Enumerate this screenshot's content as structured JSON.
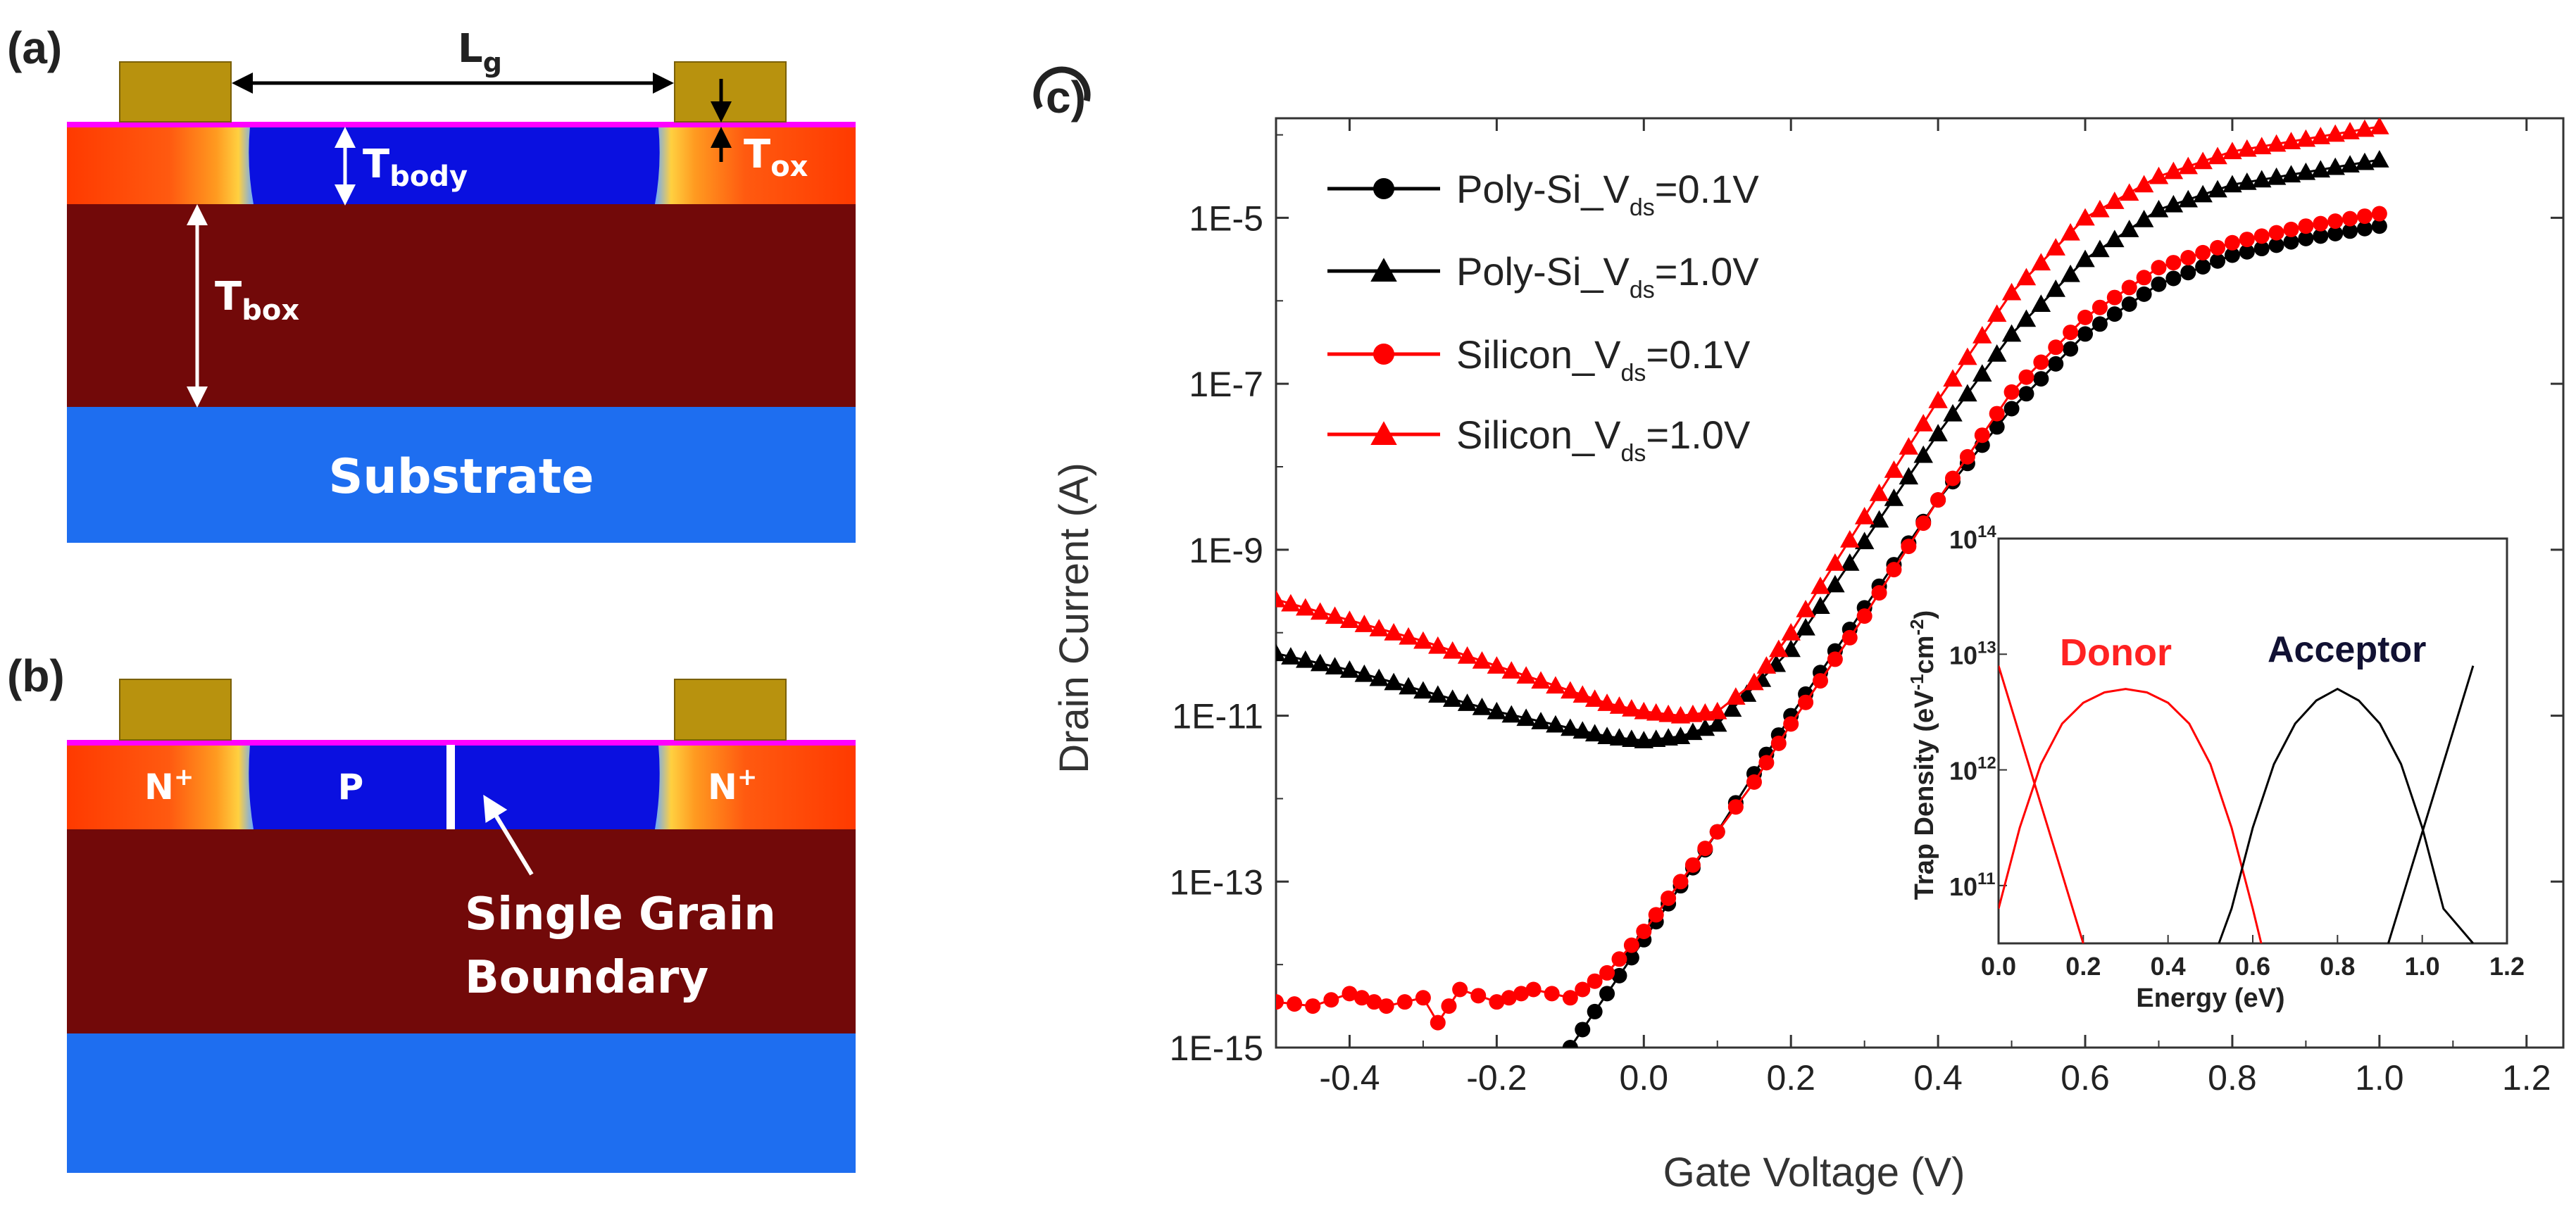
{
  "panels": {
    "a": {
      "label": "(a)",
      "lg": "L",
      "lg_sub": "g",
      "tbody": "T",
      "tbody_sub": "body",
      "tox": "T",
      "tox_sub": "ox",
      "tbox": "T",
      "tbox_sub": "box",
      "substrate": "Substrate"
    },
    "b": {
      "label": "(b)",
      "n_left": "N",
      "n_right": "N",
      "n_sup": "+",
      "p": "P",
      "boundary_line1": "Single Grain",
      "boundary_line2": "Boundary"
    },
    "c": {
      "label": "c)"
    }
  },
  "colors": {
    "gate": "#b8920e",
    "oxide": "#ff00ff",
    "body": "#0a10e0",
    "box": "#720909",
    "substrate": "#1e6ef0",
    "source_drain": "#ff3300",
    "poly": "#000000",
    "silicon": "#ff0000"
  },
  "chart_data": [
    {
      "type": "scatter",
      "title": "",
      "xlabel": "Gate Voltage (V)",
      "ylabel": "Drain Current (A)",
      "yscale": "log",
      "xlim": [
        -0.5,
        1.25
      ],
      "ylim_exp": [
        -15,
        -3.8
      ],
      "xticks": [
        -0.4,
        -0.2,
        0.0,
        0.2,
        0.4,
        0.6,
        0.8,
        1.0,
        1.2
      ],
      "xtick_labels": [
        "-0.4",
        "-0.2",
        "0.0",
        "0.2",
        "0.4",
        "0.6",
        "0.8",
        "1.0",
        "1.2"
      ],
      "ytick_exps": [
        -5,
        -7,
        -9,
        -11,
        -13,
        -15
      ],
      "ytick_labels": [
        "1E-5",
        "1E-7",
        "1E-9",
        "1E-11",
        "1E-13",
        "1E-15"
      ],
      "legend": "top-left",
      "series": [
        {
          "name": "Poly-Si_V",
          "sub": "ds",
          "suffix": "=0.1V",
          "color": "#000000",
          "marker": "circle",
          "x": [
            -0.1,
            -0.05,
            0.0,
            0.05,
            0.1,
            0.15,
            0.2,
            0.3,
            0.4,
            0.5,
            0.6,
            0.7,
            0.8,
            0.9,
            1.0
          ],
          "logy": [
            -15.0,
            -14.35,
            -13.7,
            -13.05,
            -12.4,
            -11.7,
            -11.0,
            -9.7,
            -8.4,
            -7.3,
            -6.4,
            -5.8,
            -5.45,
            -5.25,
            -5.1
          ]
        },
        {
          "name": "Poly-Si_V",
          "sub": "ds",
          "suffix": "=1.0V",
          "color": "#000000",
          "marker": "triangle",
          "x": [
            -0.5,
            -0.4,
            -0.3,
            -0.2,
            -0.1,
            -0.05,
            0.0,
            0.05,
            0.1,
            0.2,
            0.3,
            0.4,
            0.5,
            0.6,
            0.7,
            0.8,
            0.9,
            1.0
          ],
          "logy": [
            -10.25,
            -10.45,
            -10.7,
            -10.95,
            -11.15,
            -11.25,
            -11.3,
            -11.25,
            -11.1,
            -10.2,
            -8.9,
            -7.6,
            -6.4,
            -5.5,
            -4.9,
            -4.6,
            -4.45,
            -4.3
          ]
        },
        {
          "name": "Silicon_V",
          "sub": "ds",
          "suffix": "=0.1V",
          "color": "#ff0000",
          "marker": "circle",
          "x": [
            -0.5,
            -0.45,
            -0.4,
            -0.35,
            -0.3,
            -0.28,
            -0.25,
            -0.2,
            -0.15,
            -0.1,
            -0.05,
            0.0,
            0.05,
            0.1,
            0.15,
            0.2,
            0.3,
            0.4,
            0.5,
            0.6,
            0.7,
            0.8,
            0.9,
            1.0
          ],
          "logy": [
            -14.45,
            -14.5,
            -14.35,
            -14.5,
            -14.4,
            -14.7,
            -14.3,
            -14.45,
            -14.3,
            -14.4,
            -14.1,
            -13.6,
            -13.0,
            -12.4,
            -11.8,
            -11.1,
            -9.8,
            -8.4,
            -7.1,
            -6.2,
            -5.6,
            -5.3,
            -5.1,
            -4.95
          ]
        },
        {
          "name": "Silicon_V",
          "sub": "ds",
          "suffix": "=1.0V",
          "color": "#ff0000",
          "marker": "triangle",
          "x": [
            -0.5,
            -0.4,
            -0.3,
            -0.2,
            -0.1,
            -0.05,
            0.0,
            0.05,
            0.1,
            0.15,
            0.2,
            0.3,
            0.4,
            0.5,
            0.6,
            0.7,
            0.8,
            0.9,
            1.0
          ],
          "logy": [
            -9.6,
            -9.85,
            -10.1,
            -10.4,
            -10.7,
            -10.85,
            -10.95,
            -11.0,
            -10.95,
            -10.6,
            -10.0,
            -8.6,
            -7.2,
            -5.9,
            -5.0,
            -4.5,
            -4.2,
            -4.05,
            -3.9
          ]
        }
      ]
    },
    {
      "type": "line",
      "title": "",
      "xlabel": "Energy (eV)",
      "ylabel": "Trap Density (eV",
      "ylabel_sup1": "-1",
      "ylabel_mid": "cm",
      "ylabel_sup2": "-2",
      "ylabel_end": ")",
      "yscale": "log",
      "xlim": [
        0.0,
        1.2
      ],
      "ylim_exp": [
        10.5,
        14
      ],
      "xticks": [
        0.0,
        0.2,
        0.4,
        0.6,
        0.8,
        1.0,
        1.2
      ],
      "xtick_labels": [
        "0.0",
        "0.2",
        "0.4",
        "0.6",
        "0.8",
        "1.0",
        "1.2"
      ],
      "ytick_exps": [
        11,
        12,
        13,
        14
      ],
      "ytick_base": "10",
      "ytick_sups": [
        "11",
        "12",
        "13",
        "14"
      ],
      "annotations": [
        {
          "text": "Donor",
          "color": "#ff2222"
        },
        {
          "text": "Acceptor",
          "color": "#111133"
        }
      ],
      "series": [
        {
          "name": "donor-tail",
          "color": "#ff0000",
          "x": [
            0.0,
            0.05,
            0.1,
            0.15,
            0.2
          ],
          "logy": [
            12.9,
            12.3,
            11.7,
            11.1,
            10.5
          ]
        },
        {
          "name": "donor-gaussian",
          "color": "#ff0000",
          "x": [
            0.0,
            0.05,
            0.1,
            0.15,
            0.2,
            0.25,
            0.3,
            0.35,
            0.4,
            0.45,
            0.5,
            0.55,
            0.6,
            0.62
          ],
          "logy": [
            10.8,
            11.5,
            12.05,
            12.4,
            12.58,
            12.67,
            12.7,
            12.67,
            12.58,
            12.4,
            12.05,
            11.5,
            10.8,
            10.5
          ]
        },
        {
          "name": "acceptor-gaussian",
          "color": "#000000",
          "x": [
            0.52,
            0.55,
            0.6,
            0.65,
            0.7,
            0.75,
            0.8,
            0.85,
            0.9,
            0.95,
            1.0,
            1.05,
            1.12
          ],
          "logy": [
            10.5,
            10.8,
            11.5,
            12.05,
            12.4,
            12.6,
            12.7,
            12.6,
            12.4,
            12.05,
            11.5,
            10.8,
            10.5
          ]
        },
        {
          "name": "acceptor-tail",
          "color": "#000000",
          "x": [
            0.92,
            0.97,
            1.02,
            1.07,
            1.12
          ],
          "logy": [
            10.5,
            11.1,
            11.7,
            12.3,
            12.9
          ]
        }
      ]
    }
  ]
}
